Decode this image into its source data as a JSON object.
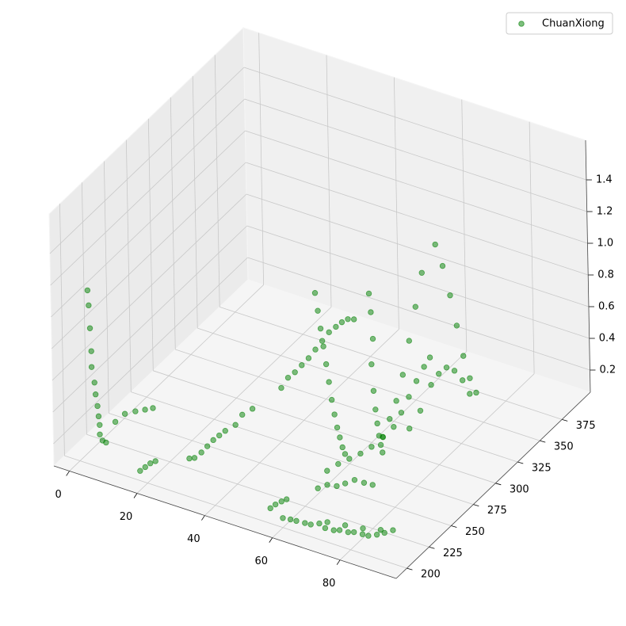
{
  "chart_data": {
    "type": "scatter3d",
    "series": [
      {
        "name": "ChuanXiong",
        "color": "green",
        "x": [
          1,
          1,
          1,
          1,
          1,
          1.5,
          1.5,
          2,
          2,
          2,
          2,
          2.5,
          3,
          4,
          5,
          6,
          7,
          8,
          17,
          18,
          19,
          20,
          25,
          26,
          27,
          28,
          29,
          30,
          31,
          33,
          34,
          36,
          42,
          43,
          44,
          45,
          46,
          47,
          48,
          49,
          50,
          51,
          52,
          53,
          48,
          49,
          50,
          51,
          52,
          53,
          54,
          55,
          56,
          57,
          58,
          59,
          60,
          61,
          62,
          62,
          63,
          64,
          65,
          66,
          67,
          68,
          60,
          62,
          64,
          66,
          68,
          70,
          72,
          73,
          74,
          75,
          76,
          77,
          60,
          62,
          64,
          66,
          68,
          70,
          72,
          74,
          76,
          78,
          80,
          82,
          84,
          86,
          88,
          90,
          70,
          75,
          80,
          85,
          72,
          73,
          74,
          75,
          76,
          77,
          78,
          80,
          81,
          82,
          83,
          84,
          85,
          86,
          74,
          76,
          78,
          79,
          80,
          81,
          82,
          83,
          62,
          64,
          66,
          68,
          70,
          72,
          74,
          55,
          56,
          57,
          58
        ],
        "y": [
          208,
          209,
          210,
          211,
          211,
          212,
          213,
          213,
          214,
          215,
          215,
          216,
          218,
          225,
          232,
          240,
          247,
          252,
          203,
          205,
          207,
          209,
          228,
          230,
          234,
          237,
          240,
          243,
          246,
          250,
          254,
          258,
          268,
          272,
          276,
          280,
          284,
          288,
          292,
          296,
          300,
          303,
          306,
          309,
          285,
          284,
          283,
          282,
          281,
          280,
          279,
          278,
          277,
          276,
          275,
          274,
          300,
          298,
          296,
          294,
          292,
          290,
          288,
          286,
          284,
          282,
          250,
          255,
          260,
          265,
          270,
          275,
          280,
          285,
          290,
          295,
          300,
          303,
          200,
          201,
          200,
          202,
          201,
          203,
          202,
          204,
          203,
          205,
          204,
          206,
          205,
          207,
          208,
          210,
          212,
          213,
          214,
          215,
          268,
          272,
          276,
          280,
          284,
          288,
          292,
          300,
          304,
          308,
          311,
          314,
          317,
          320,
          290,
          295,
          300,
          305,
          310,
          315,
          320,
          324,
          232,
          235,
          238,
          240,
          243,
          246,
          248,
          205,
          207,
          210,
          212
        ],
        "z": [
          1.1,
          1.0,
          0.85,
          0.7,
          0.6,
          0.5,
          0.42,
          0.35,
          0.28,
          0.22,
          0.16,
          0.12,
          0.1,
          0.2,
          0.22,
          0.2,
          0.18,
          0.17,
          0.1,
          0.12,
          0.14,
          0.15,
          0.1,
          0.1,
          0.12,
          0.15,
          0.18,
          0.2,
          0.22,
          0.25,
          0.3,
          0.33,
          0.45,
          0.5,
          0.52,
          0.55,
          0.58,
          0.62,
          0.66,
          0.7,
          0.72,
          0.74,
          0.75,
          0.74,
          1.0,
          0.9,
          0.8,
          0.7,
          0.6,
          0.5,
          0.4,
          0.32,
          0.25,
          0.2,
          0.15,
          0.12,
          1.0,
          0.9,
          0.75,
          0.6,
          0.45,
          0.35,
          0.28,
          0.22,
          0.18,
          0.15,
          0.15,
          0.18,
          0.2,
          0.22,
          0.25,
          0.3,
          0.35,
          0.42,
          0.5,
          0.58,
          0.65,
          0.7,
          0.12,
          0.12,
          0.13,
          0.12,
          0.13,
          0.14,
          0.13,
          0.12,
          0.14,
          0.13,
          0.15,
          0.14,
          0.15,
          0.16,
          0.18,
          0.2,
          0.1,
          0.11,
          0.12,
          0.14,
          0.35,
          0.45,
          0.55,
          0.7,
          0.9,
          1.1,
          1.3,
          1.45,
          1.3,
          1.1,
          0.9,
          0.7,
          0.55,
          0.45,
          0.3,
          0.4,
          0.55,
          0.6,
          0.62,
          0.58,
          0.5,
          0.4,
          0.15,
          0.17,
          0.16,
          0.18,
          0.2,
          0.18,
          0.17,
          0.12,
          0.14,
          0.15,
          0.16
        ]
      }
    ],
    "xlim": [
      -4.6,
      96.6
    ],
    "ylim": [
      188,
      407
    ],
    "zlim": [
      0.06,
      1.65
    ],
    "xticks": [
      0,
      20,
      40,
      60,
      80
    ],
    "yticks": [
      200,
      225,
      250,
      275,
      300,
      325,
      350,
      375
    ],
    "zticks": [
      0.2,
      0.4,
      0.6,
      0.8,
      {
        "value": 1,
        "label": "1.0"
      },
      1.2,
      1.4
    ],
    "grid": true,
    "legend": "upper right"
  }
}
